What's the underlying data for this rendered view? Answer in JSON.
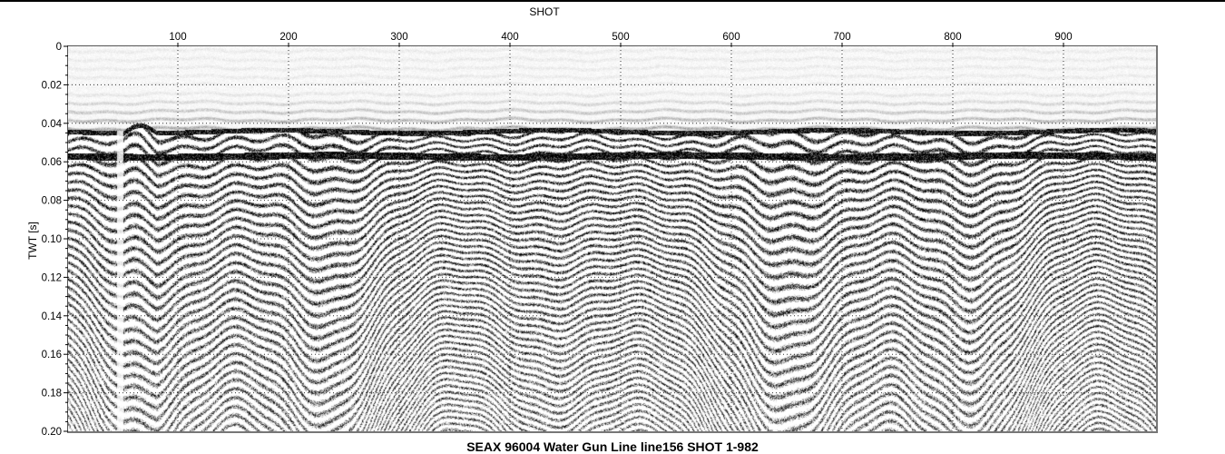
{
  "chart_data": {
    "type": "heatmap",
    "subtype": "seismic section (variable density, grayscale)",
    "title": "SEAX 96004 Water Gun Line line156 SHOT 1-982",
    "xlabel": "SHOT",
    "ylabel": "TWT [s]",
    "xlim": [
      1,
      982
    ],
    "ylim": [
      0,
      0.2
    ],
    "y_reversed": true,
    "x_axis_position": "top",
    "x_ticks": [
      100,
      200,
      300,
      400,
      500,
      600,
      700,
      800,
      900
    ],
    "y_ticks": [
      "0",
      "0.02",
      "0.04",
      "0.06",
      "0.08",
      "0.10",
      "0.12",
      "0.14",
      "0.16",
      "0.18",
      "0.20"
    ],
    "grid": "dotted",
    "colormap": [
      "#ffffff",
      "#000000"
    ],
    "seafloor_twt": 0.044,
    "strong_reflector_twt": 0.057
  }
}
